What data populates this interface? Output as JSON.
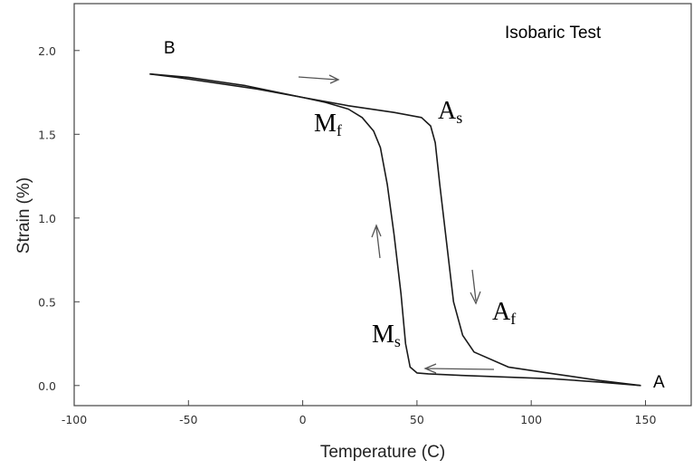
{
  "chart_data": {
    "type": "line",
    "title": "Isobaric Test",
    "xlabel": "Temperature (C)",
    "ylabel": "Strain (%)",
    "xlim": [
      -100,
      170
    ],
    "ylim": [
      -0.12,
      2.28
    ],
    "x_ticks": [
      -100,
      -50,
      0,
      50,
      100,
      150
    ],
    "x_tick_labels": [
      "-100",
      "-50",
      "0",
      "50",
      "100",
      "150"
    ],
    "y_ticks": [
      0.0,
      0.5,
      1.0,
      1.5,
      2.0
    ],
    "y_tick_labels": [
      "0.0",
      "0.5",
      "1.0",
      "1.5",
      "2.0"
    ],
    "grid": false,
    "series": [
      {
        "values": [
          [
            148,
            0.0
          ],
          [
            130,
            0.02
          ],
          [
            110,
            0.04
          ],
          [
            90,
            0.05
          ],
          [
            70,
            0.06
          ],
          [
            55,
            0.07
          ],
          [
            50,
            0.075
          ],
          [
            47,
            0.11
          ],
          [
            45,
            0.25
          ],
          [
            43,
            0.55
          ],
          [
            40,
            0.9
          ],
          [
            37,
            1.2
          ],
          [
            34,
            1.42
          ],
          [
            31,
            1.52
          ],
          [
            26,
            1.6
          ],
          [
            20,
            1.65
          ],
          [
            10,
            1.69
          ],
          [
            0,
            1.72
          ],
          [
            -20,
            1.77
          ],
          [
            -40,
            1.81
          ],
          [
            -55,
            1.84
          ],
          [
            -67,
            1.86
          ]
        ]
      },
      {
        "values": [
          [
            -67,
            1.86
          ],
          [
            -50,
            1.84
          ],
          [
            -25,
            1.79
          ],
          [
            0,
            1.72
          ],
          [
            20,
            1.67
          ],
          [
            40,
            1.63
          ],
          [
            52,
            1.6
          ],
          [
            56,
            1.55
          ],
          [
            58,
            1.45
          ],
          [
            60,
            1.2
          ],
          [
            63,
            0.85
          ],
          [
            66,
            0.5
          ],
          [
            70,
            0.3
          ],
          [
            75,
            0.2
          ],
          [
            90,
            0.11
          ],
          [
            110,
            0.07
          ],
          [
            130,
            0.03
          ],
          [
            148,
            0.0
          ]
        ]
      }
    ],
    "annotations": {
      "B": "B",
      "A": "A",
      "M": "M",
      "f": "f",
      "s": "s",
      "A_cap": "A"
    }
  }
}
